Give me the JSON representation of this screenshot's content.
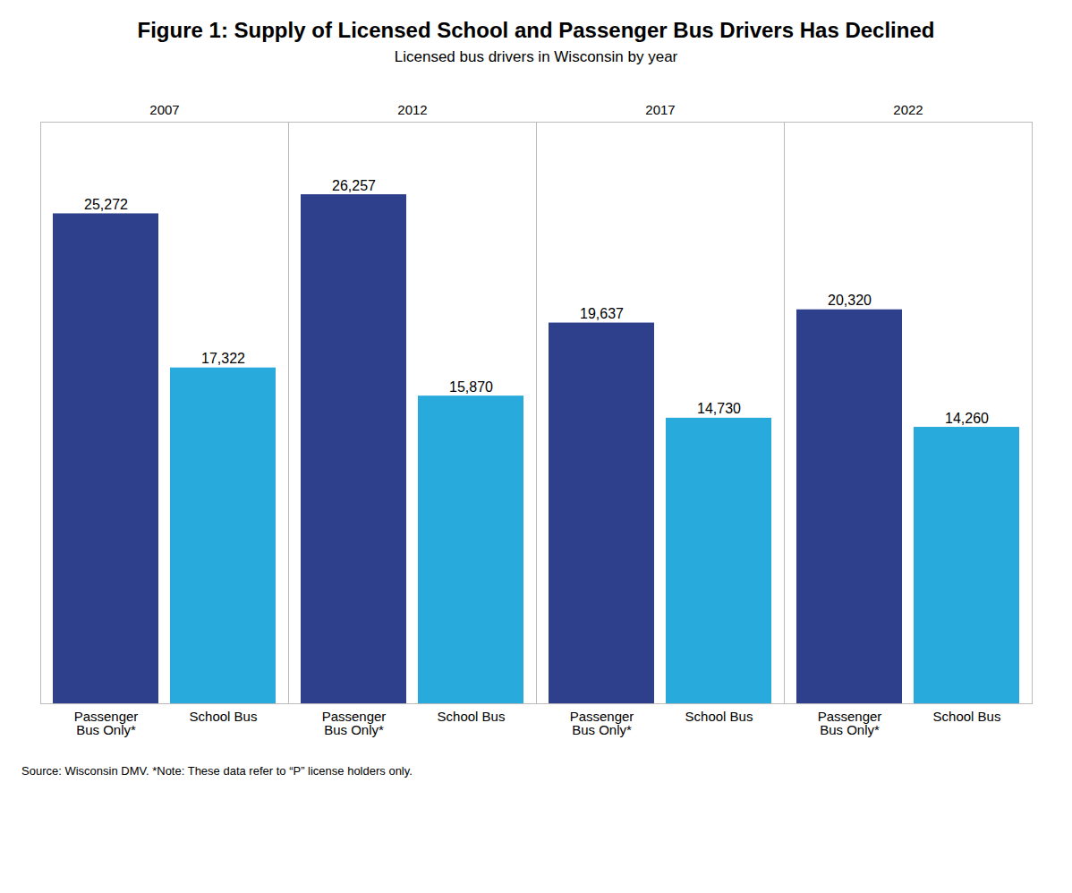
{
  "chart_data": {
    "type": "bar",
    "title": "Figure 1: Supply of Licensed School and Passenger Bus Drivers Has Declined",
    "subtitle": "Licensed bus drivers in Wisconsin by year",
    "annotations": [
      "Source: Wisconsin DMV.  *Note: These data refer to “P” license holders only."
    ],
    "categories": [
      "2007",
      "2012",
      "2017",
      "2022"
    ],
    "series": [
      {
        "name": "Passenger\nBus Only*",
        "color": "#2E3F8C",
        "values": [
          25272,
          26257,
          19637,
          20320
        ],
        "value_labels": [
          "25,272",
          "26,257",
          "19,637",
          "20,320"
        ]
      },
      {
        "name": "School Bus",
        "color": "#29AADC",
        "values": [
          17322,
          15870,
          14730,
          14260
        ],
        "value_labels": [
          "17,322",
          "15,870",
          "14,730",
          "14,260"
        ]
      }
    ],
    "ylim": [
      0,
      30000
    ],
    "data_labels": true,
    "tick_labels": "x",
    "grid": false
  }
}
